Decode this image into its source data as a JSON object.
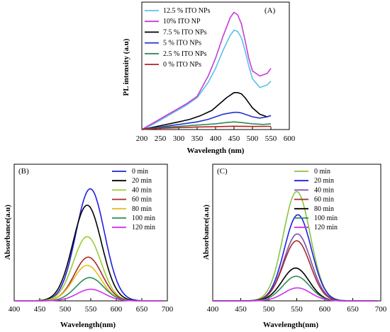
{
  "chart_data": [
    {
      "type": "line",
      "panel": "(A)",
      "xlabel": "Wavelength (nm)",
      "ylabel": "PL intensity (a.u)",
      "xlim": [
        200,
        600
      ],
      "ylim": [
        0,
        100
      ],
      "xticks": [
        200,
        250,
        300,
        350,
        400,
        450,
        500,
        550,
        600
      ],
      "legend_position": "top-left",
      "grid": false,
      "series": [
        {
          "name": "12.5 % ITO NPs",
          "color": "#5bc0e8",
          "x": [
            200,
            230,
            260,
            290,
            320,
            350,
            380,
            400,
            420,
            440,
            450,
            460,
            470,
            480,
            490,
            500,
            520,
            540,
            550
          ],
          "y": [
            0,
            4,
            9,
            14,
            19,
            25,
            37,
            48,
            62,
            74,
            78,
            77,
            72,
            62,
            50,
            40,
            33,
            35,
            38
          ]
        },
        {
          "name": " 10% ITO NP",
          "color": "#c23ed6",
          "x": [
            200,
            230,
            260,
            290,
            320,
            350,
            380,
            400,
            420,
            440,
            450,
            460,
            470,
            480,
            490,
            500,
            520,
            540,
            550
          ],
          "y": [
            0,
            5,
            10,
            15,
            20,
            26,
            42,
            56,
            73,
            88,
            92,
            90,
            83,
            70,
            56,
            46,
            42,
            44,
            48
          ]
        },
        {
          "name": "7.5 % ITO NPs",
          "color": "#000000",
          "x": [
            200,
            250,
            300,
            330,
            360,
            390,
            410,
            430,
            450,
            460,
            470,
            480,
            490,
            500,
            520,
            540,
            550
          ],
          "y": [
            0,
            3,
            6,
            8,
            11,
            15,
            20,
            25,
            29,
            29,
            28,
            25,
            21,
            17,
            12,
            10,
            11
          ]
        },
        {
          "name": "5 % ITO NPs",
          "color": "#2233cc",
          "x": [
            200,
            250,
            300,
            350,
            380,
            400,
            420,
            440,
            450,
            460,
            470,
            480,
            500,
            520,
            540,
            550
          ],
          "y": [
            0,
            2,
            4,
            6,
            8,
            10,
            12,
            13,
            13.5,
            13.5,
            13,
            12,
            10,
            9,
            10,
            11
          ]
        },
        {
          "name": "2.5 % ITO NPs",
          "color": "#2e8b57",
          "x": [
            200,
            250,
            300,
            350,
            400,
            430,
            450,
            470,
            500,
            530,
            550
          ],
          "y": [
            0,
            1.5,
            2.5,
            3.5,
            4.5,
            5.5,
            6,
            5.5,
            4.5,
            4,
            4.5
          ]
        },
        {
          "name": "0 % ITO NPs",
          "color": "#b22222",
          "x": [
            200,
            250,
            300,
            350,
            400,
            450,
            500,
            550
          ],
          "y": [
            0,
            1,
            1.5,
            2,
            2.3,
            2.6,
            2.4,
            2.5
          ]
        }
      ]
    },
    {
      "type": "line",
      "panel": "(B)",
      "xlabel": "Wavelength(nm)",
      "ylabel": "Absorbance(a.u)",
      "xlim": [
        400,
        700
      ],
      "ylim": [
        0,
        1
      ],
      "xticks": [
        400,
        450,
        500,
        550,
        600,
        650,
        700
      ],
      "legend_position": "top-right",
      "grid": false,
      "series": [
        {
          "name": "0 min",
          "color": "#1f1fe0",
          "center": 549,
          "sigma": 28,
          "height": 0.82
        },
        {
          "name": "20 min",
          "color": "#000000",
          "center": 543,
          "sigma": 28,
          "height": 0.7
        },
        {
          "name": "40 min",
          "color": "#9acd32",
          "center": 543,
          "sigma": 27,
          "height": 0.47
        },
        {
          "name": "60 min",
          "color": "#a52a2a",
          "center": 545,
          "sigma": 27,
          "height": 0.32
        },
        {
          "name": "80 min",
          "color": "#e0c020",
          "center": 543,
          "sigma": 27,
          "height": 0.26
        },
        {
          "name": "100 min",
          "color": "#2e8b57",
          "center": 548,
          "sigma": 27,
          "height": 0.17
        },
        {
          "name": "120 min",
          "color": "#cc33ee",
          "center": 550,
          "sigma": 27,
          "height": 0.085
        }
      ]
    },
    {
      "type": "line",
      "panel": "(C)",
      "xlabel": "Wavelength(nm)",
      "ylabel": "Absorbance(a.u)",
      "xlim": [
        400,
        700
      ],
      "ylim": [
        0,
        1
      ],
      "xticks": [
        400,
        450,
        500,
        550,
        600,
        650,
        700
      ],
      "legend_position": "top-right",
      "grid": false,
      "series": [
        {
          "name": "0 min",
          "color": "#88c540",
          "center": 550,
          "sigma": 24,
          "height": 0.8
        },
        {
          "name": "20 min",
          "color": "#1f1fe0",
          "center": 552,
          "sigma": 24,
          "height": 0.63
        },
        {
          "name": "40 min",
          "color": "#7b4fb0",
          "center": 551,
          "sigma": 24,
          "height": 0.49
        },
        {
          "name": "60 min",
          "color": "#a52a2a",
          "center": 550,
          "sigma": 24,
          "height": 0.44
        },
        {
          "name": "80 min",
          "color": "#000000",
          "center": 548,
          "sigma": 24,
          "height": 0.24
        },
        {
          "name": "100 min",
          "color": "#2e8b57",
          "center": 549,
          "sigma": 24,
          "height": 0.18
        },
        {
          "name": "120 min",
          "color": "#cc33ee",
          "center": 551,
          "sigma": 24,
          "height": 0.095
        }
      ]
    }
  ]
}
